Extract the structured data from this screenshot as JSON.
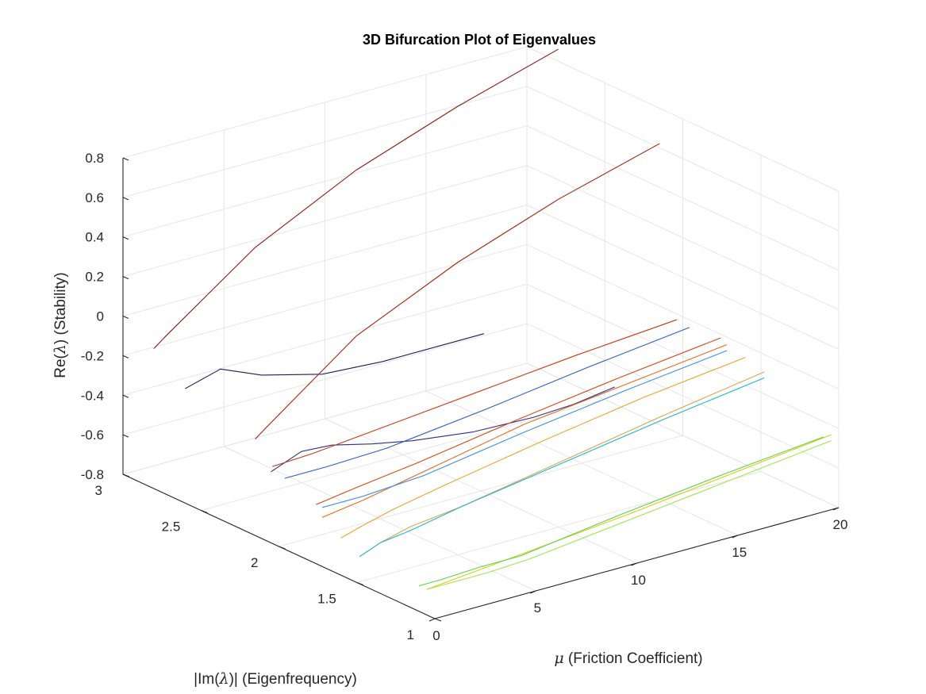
{
  "chart_data": {
    "type": "line",
    "projection": "3d",
    "title": "3D Bifurcation Plot of Eigenvalues",
    "xlabel": "μ (Friction Coefficient)",
    "ylabel": "|Im(λ)| (Eigenfrequency)",
    "zlabel": "Re(λ) (Stability)",
    "xlim": [
      0,
      20
    ],
    "ylim": [
      1,
      3
    ],
    "zlim": [
      -0.8,
      0.8
    ],
    "xticks": [
      "0",
      "5",
      "10",
      "15",
      "20"
    ],
    "yticks": [
      "1",
      "1.5",
      "2",
      "2.5",
      "3"
    ],
    "zticks": [
      "-0.8",
      "-0.6",
      "-0.4",
      "-0.2",
      "0",
      "0.2",
      "0.4",
      "0.6",
      "0.8"
    ],
    "grid": true,
    "series": [
      {
        "color": "#1f1d5a",
        "x": [
          0,
          1.2,
          3,
          6,
          9,
          12,
          14
        ],
        "y": [
          2.6,
          2.53,
          2.5,
          2.5,
          2.5,
          2.5,
          2.5
        ],
        "z": [
          -0.22,
          -0.13,
          -0.2,
          -0.28,
          -0.3,
          -0.3,
          -0.3
        ]
      },
      {
        "color": "#2a2f86",
        "x": [
          0,
          1.5,
          3,
          5,
          7,
          10,
          13,
          15,
          17
        ],
        "y": [
          2.05,
          2.05,
          2.05,
          2.05,
          2.05,
          2.05,
          2.05,
          2.05,
          2.05
        ],
        "z": [
          -0.44,
          -0.38,
          -0.39,
          -0.44,
          -0.48,
          -0.52,
          -0.53,
          -0.52,
          -0.49
        ]
      },
      {
        "color": "#8b1a10",
        "x": [
          0,
          0.5,
          5,
          10,
          15,
          20
        ],
        "y": [
          2.8,
          2.8,
          2.8,
          2.8,
          2.8,
          2.8
        ],
        "z": [
          -0.09,
          -0.05,
          0.28,
          0.53,
          0.71,
          0.86
        ]
      },
      {
        "color": "#a3230f",
        "x": [
          0,
          0.5,
          5,
          10,
          15,
          20
        ],
        "y": [
          2.15,
          2.15,
          2.15,
          2.15,
          2.15,
          2.15
        ],
        "z": [
          -0.31,
          -0.27,
          0.07,
          0.3,
          0.48,
          0.62
        ]
      },
      {
        "color": "#c53a10",
        "x": [
          0,
          2,
          5,
          10,
          15,
          20
        ],
        "y": [
          2.04,
          2.04,
          2.04,
          2.04,
          2.04,
          2.04
        ],
        "z": [
          -0.41,
          -0.4,
          -0.37,
          -0.32,
          -0.27,
          -0.23
        ]
      },
      {
        "color": "#d14a14",
        "x": [
          0,
          2,
          5,
          10,
          15,
          20
        ],
        "y": [
          1.76,
          1.76,
          1.76,
          1.76,
          1.76,
          1.76
        ],
        "z": [
          -0.5,
          -0.47,
          -0.43,
          -0.35,
          -0.28,
          -0.22
        ]
      },
      {
        "color": "#e8681e",
        "x": [
          0,
          2,
          5,
          10,
          15,
          20
        ],
        "y": [
          1.72,
          1.72,
          1.72,
          1.72,
          1.72,
          1.72
        ],
        "z": [
          -0.55,
          -0.52,
          -0.46,
          -0.36,
          -0.3,
          -0.24
        ]
      },
      {
        "color": "#2b5ec8",
        "x": [
          0,
          2,
          5,
          10,
          15,
          20
        ],
        "y": [
          1.96,
          1.96,
          1.96,
          1.96,
          1.96,
          1.96
        ],
        "z": [
          -0.44,
          -0.44,
          -0.43,
          -0.37,
          -0.3,
          -0.24
        ]
      },
      {
        "color": "#3d8ee6",
        "x": [
          0,
          2,
          5,
          10,
          15,
          20
        ],
        "y": [
          1.72,
          1.72,
          1.72,
          1.72,
          1.72,
          1.72
        ],
        "z": [
          -0.5,
          -0.5,
          -0.48,
          -0.4,
          -0.33,
          -0.27
        ]
      },
      {
        "color": "#f2a12a",
        "x": [
          0,
          1,
          2.5,
          5,
          10,
          15,
          20
        ],
        "y": [
          1.6,
          1.6,
          1.6,
          1.6,
          1.6,
          1.6,
          1.6
        ],
        "z": [
          -0.61,
          -0.58,
          -0.54,
          -0.49,
          -0.4,
          -0.32,
          -0.26
        ]
      },
      {
        "color": "#d9a64a",
        "x": [
          0,
          1,
          2.5,
          5,
          10,
          15,
          20
        ],
        "y": [
          1.48,
          1.48,
          1.48,
          1.48,
          1.48,
          1.48,
          1.48
        ],
        "z": [
          -0.66,
          -0.62,
          -0.58,
          -0.55,
          -0.46,
          -0.37,
          -0.29
        ]
      },
      {
        "color": "#22b5d2",
        "x": [
          0,
          1,
          2.5,
          5,
          10,
          15,
          20
        ],
        "y": [
          1.48,
          1.48,
          1.48,
          1.48,
          1.48,
          1.48,
          1.48
        ],
        "z": [
          -0.66,
          -0.62,
          -0.6,
          -0.55,
          -0.47,
          -0.39,
          -0.32
        ]
      },
      {
        "color": "#d6cf10",
        "x": [
          0,
          5,
          10,
          15,
          20
        ],
        "y": [
          1.05,
          1.05,
          1.05,
          1.05,
          1.05
        ],
        "z": [
          -0.67,
          -0.62,
          -0.57,
          -0.51,
          -0.45
        ]
      },
      {
        "color": "#5ed24a",
        "x": [
          0,
          1,
          3,
          5,
          10,
          15,
          20
        ],
        "y": [
          1.1,
          1.1,
          1.1,
          1.1,
          1.1,
          1.1,
          1.1
        ],
        "z": [
          -0.67,
          -0.67,
          -0.66,
          -0.66,
          -0.59,
          -0.53,
          -0.48
        ]
      },
      {
        "color": "#9ee84a",
        "x": [
          0,
          1,
          3,
          5,
          10,
          15,
          20
        ],
        "y": [
          1.05,
          1.05,
          1.05,
          1.05,
          1.05,
          1.05,
          1.05
        ],
        "z": [
          -0.67,
          -0.67,
          -0.67,
          -0.66,
          -0.6,
          -0.54,
          -0.48
        ]
      }
    ]
  }
}
